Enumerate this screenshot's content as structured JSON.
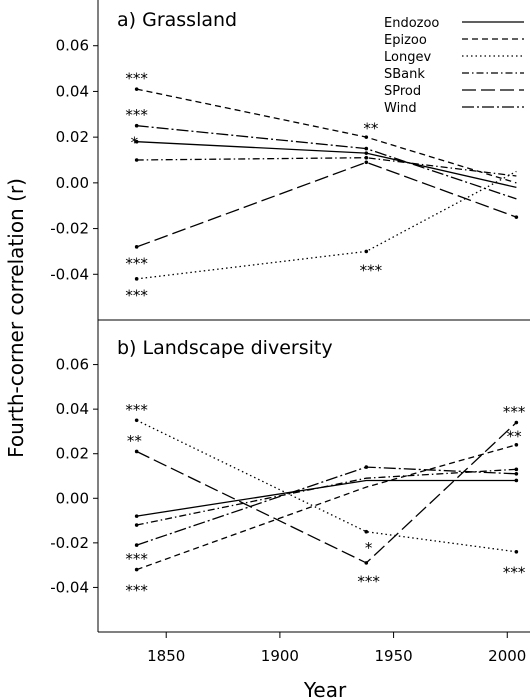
{
  "figure": {
    "ylabel": "Fourth-corner correlation (r)",
    "xlabel": "Year",
    "xlim": [
      1820,
      2010
    ],
    "x_ticks": [
      1850,
      1900,
      1950,
      2000
    ]
  },
  "styles": {
    "Endozoo": "solid",
    "Epizoo": "short-dash",
    "Longev": "dotted",
    "SBank": "dash-dot",
    "SProd": "long-dash",
    "Wind": "long-dash-dot"
  },
  "chart_data": [
    {
      "type": "line",
      "title": "a)  Grassland",
      "xlabel": "",
      "ylabel": "Fourth-corner correlation (r)",
      "x": [
        1837,
        1938,
        2004
      ],
      "ylim": [
        -0.06,
        0.08
      ],
      "y_ticks": [
        -0.04,
        -0.02,
        0.0,
        0.02,
        0.04,
        0.06
      ],
      "y_tick_labels": [
        "-0.04",
        "-0.02",
        "0.00",
        "0.02",
        "0.04",
        "0.06"
      ],
      "legend_position": "top-right",
      "series": [
        {
          "name": "Endozoo",
          "values": [
            0.018,
            0.013,
            -0.002
          ],
          "markers": [
            true,
            true,
            false
          ]
        },
        {
          "name": "Epizoo",
          "values": [
            0.041,
            0.02,
            0.0
          ],
          "markers": [
            true,
            true,
            false
          ]
        },
        {
          "name": "Longev",
          "values": [
            -0.042,
            -0.03,
            0.005
          ],
          "markers": [
            true,
            true,
            false
          ]
        },
        {
          "name": "SBank",
          "values": [
            0.01,
            0.011,
            0.003
          ],
          "markers": [
            true,
            true,
            false
          ]
        },
        {
          "name": "SProd",
          "values": [
            -0.028,
            0.009,
            -0.015
          ],
          "markers": [
            true,
            true,
            true
          ]
        },
        {
          "name": "Wind",
          "values": [
            0.025,
            0.015,
            -0.007
          ],
          "markers": [
            true,
            true,
            false
          ]
        }
      ],
      "annotations": [
        {
          "text": "***",
          "x": 1837,
          "y": 0.047
        },
        {
          "text": "***",
          "x": 1837,
          "y": 0.031
        },
        {
          "text": "*",
          "x": 1836,
          "y": 0.019
        },
        {
          "text": "**",
          "x": 1940,
          "y": 0.025
        },
        {
          "text": "***",
          "x": 1837,
          "y": -0.034
        },
        {
          "text": "***",
          "x": 1837,
          "y": -0.048
        },
        {
          "text": "***",
          "x": 1940,
          "y": -0.037
        }
      ]
    },
    {
      "type": "line",
      "title": "b)  Landscape diversity",
      "xlabel": "Year",
      "ylabel": "Fourth-corner correlation (r)",
      "x": [
        1837,
        1938,
        2004
      ],
      "ylim": [
        -0.06,
        0.08
      ],
      "y_ticks": [
        -0.04,
        -0.02,
        0.0,
        0.02,
        0.04,
        0.06
      ],
      "y_tick_labels": [
        "-0.04",
        "-0.02",
        "0.00",
        "0.02",
        "0.04",
        "0.06"
      ],
      "series": [
        {
          "name": "Endozoo",
          "values": [
            -0.008,
            0.008,
            0.008
          ],
          "markers": [
            true,
            false,
            true
          ]
        },
        {
          "name": "Epizoo",
          "values": [
            -0.032,
            0.005,
            0.024
          ],
          "markers": [
            true,
            false,
            true
          ]
        },
        {
          "name": "Longev",
          "values": [
            0.035,
            -0.015,
            -0.024
          ],
          "markers": [
            true,
            true,
            true
          ]
        },
        {
          "name": "SBank",
          "values": [
            -0.012,
            0.009,
            0.013
          ],
          "markers": [
            true,
            false,
            true
          ]
        },
        {
          "name": "SProd",
          "values": [
            0.021,
            -0.029,
            0.034
          ],
          "markers": [
            true,
            true,
            true
          ]
        },
        {
          "name": "Wind",
          "values": [
            -0.021,
            0.014,
            0.011
          ],
          "markers": [
            true,
            true,
            true
          ]
        }
      ],
      "annotations": [
        {
          "text": "***",
          "x": 1837,
          "y": 0.041
        },
        {
          "text": "**",
          "x": 1836,
          "y": 0.027
        },
        {
          "text": "***",
          "x": 1837,
          "y": -0.026
        },
        {
          "text": "***",
          "x": 1837,
          "y": -0.04
        },
        {
          "text": "*",
          "x": 1939,
          "y": -0.021
        },
        {
          "text": "***",
          "x": 1939,
          "y": -0.036
        },
        {
          "text": "***",
          "x": 2003,
          "y": 0.04
        },
        {
          "text": "**",
          "x": 2003,
          "y": 0.029
        },
        {
          "text": "***",
          "x": 2003,
          "y": -0.032
        }
      ]
    }
  ]
}
